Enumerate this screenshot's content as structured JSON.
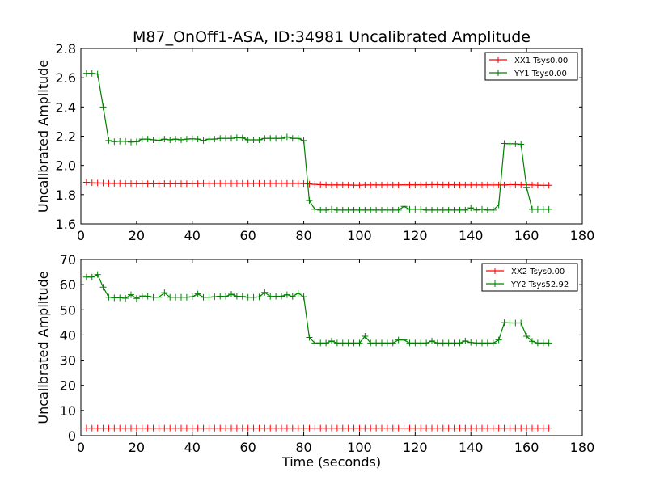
{
  "title": "M87_OnOff1-ASA, ID:34981 Uncalibrated Amplitude",
  "chart_data": [
    {
      "type": "line",
      "ylabel": "Uncalibrated Amplitude",
      "xlabel": "",
      "xlim": [
        0,
        180
      ],
      "ylim": [
        1.6,
        2.8
      ],
      "xticks": [
        0,
        20,
        40,
        60,
        80,
        100,
        120,
        140,
        160,
        180
      ],
      "yticks": [
        1.6,
        1.8,
        2.0,
        2.2,
        2.4,
        2.6,
        2.8
      ],
      "ytick_decimals": 1,
      "grid": false,
      "legend_position": "top-right",
      "series": [
        {
          "name": "XX1 Tsys0.00",
          "color": "#ff0000",
          "x": [
            2,
            4,
            6,
            8,
            10,
            12,
            14,
            16,
            18,
            20,
            22,
            24,
            26,
            28,
            30,
            32,
            34,
            36,
            38,
            40,
            42,
            44,
            46,
            48,
            50,
            52,
            54,
            56,
            58,
            60,
            62,
            64,
            66,
            68,
            70,
            72,
            74,
            76,
            78,
            80,
            82,
            84,
            86,
            88,
            90,
            92,
            94,
            96,
            98,
            100,
            102,
            104,
            106,
            108,
            110,
            112,
            114,
            116,
            118,
            120,
            122,
            124,
            126,
            128,
            130,
            132,
            134,
            136,
            138,
            140,
            142,
            144,
            146,
            148,
            150,
            152,
            154,
            156,
            158,
            160,
            162,
            164,
            166,
            168
          ],
          "y": [
            1.885,
            1.881,
            1.88,
            1.879,
            1.878,
            1.877,
            1.877,
            1.876,
            1.876,
            1.875,
            1.875,
            1.875,
            1.875,
            1.875,
            1.876,
            1.875,
            1.875,
            1.875,
            1.875,
            1.876,
            1.876,
            1.877,
            1.877,
            1.877,
            1.877,
            1.877,
            1.877,
            1.877,
            1.877,
            1.877,
            1.877,
            1.877,
            1.877,
            1.877,
            1.877,
            1.877,
            1.877,
            1.877,
            1.877,
            1.876,
            1.873,
            1.87,
            1.868,
            1.867,
            1.866,
            1.866,
            1.866,
            1.866,
            1.865,
            1.865,
            1.866,
            1.866,
            1.866,
            1.866,
            1.866,
            1.866,
            1.866,
            1.867,
            1.867,
            1.867,
            1.867,
            1.867,
            1.868,
            1.868,
            1.867,
            1.867,
            1.867,
            1.866,
            1.866,
            1.866,
            1.866,
            1.866,
            1.866,
            1.866,
            1.866,
            1.866,
            1.868,
            1.868,
            1.867,
            1.867,
            1.866,
            1.865,
            1.864,
            1.864
          ]
        },
        {
          "name": "YY1 Tsys0.00",
          "color": "#008000",
          "x": [
            2,
            4,
            6,
            8,
            10,
            12,
            14,
            16,
            18,
            20,
            22,
            24,
            26,
            28,
            30,
            32,
            34,
            36,
            38,
            40,
            42,
            44,
            46,
            48,
            50,
            52,
            54,
            56,
            58,
            60,
            62,
            64,
            66,
            68,
            70,
            72,
            74,
            76,
            78,
            80,
            82,
            84,
            86,
            88,
            90,
            92,
            94,
            96,
            98,
            100,
            102,
            104,
            106,
            108,
            110,
            112,
            114,
            116,
            118,
            120,
            122,
            124,
            126,
            128,
            130,
            132,
            134,
            136,
            138,
            140,
            142,
            144,
            146,
            148,
            150,
            152,
            154,
            156,
            158,
            160,
            162,
            164,
            166,
            168
          ],
          "y": [
            2.63,
            2.63,
            2.625,
            2.4,
            2.17,
            2.163,
            2.165,
            2.165,
            2.16,
            2.162,
            2.18,
            2.18,
            2.175,
            2.172,
            2.18,
            2.175,
            2.18,
            2.175,
            2.18,
            2.182,
            2.18,
            2.17,
            2.18,
            2.18,
            2.185,
            2.185,
            2.185,
            2.19,
            2.188,
            2.175,
            2.175,
            2.175,
            2.185,
            2.185,
            2.185,
            2.185,
            2.195,
            2.185,
            2.185,
            2.17,
            1.76,
            1.7,
            1.695,
            1.695,
            1.7,
            1.695,
            1.695,
            1.695,
            1.695,
            1.695,
            1.695,
            1.695,
            1.695,
            1.695,
            1.695,
            1.695,
            1.695,
            1.72,
            1.7,
            1.7,
            1.7,
            1.695,
            1.695,
            1.695,
            1.695,
            1.695,
            1.695,
            1.695,
            1.695,
            1.71,
            1.695,
            1.7,
            1.695,
            1.695,
            1.73,
            2.15,
            2.148,
            2.148,
            2.145,
            1.85,
            1.7,
            1.7,
            1.7,
            1.7
          ]
        }
      ]
    },
    {
      "type": "line",
      "ylabel": "Uncalibrated Amplitude",
      "xlabel": "Time (seconds)",
      "xlim": [
        0,
        180
      ],
      "ylim": [
        0,
        70
      ],
      "xticks": [
        0,
        20,
        40,
        60,
        80,
        100,
        120,
        140,
        160,
        180
      ],
      "yticks": [
        0,
        10,
        20,
        30,
        40,
        50,
        60,
        70
      ],
      "ytick_decimals": 0,
      "grid": false,
      "legend_position": "top-right",
      "series": [
        {
          "name": "XX2 Tsys0.00",
          "color": "#ff0000",
          "x": [
            2,
            4,
            6,
            8,
            10,
            12,
            14,
            16,
            18,
            20,
            22,
            24,
            26,
            28,
            30,
            32,
            34,
            36,
            38,
            40,
            42,
            44,
            46,
            48,
            50,
            52,
            54,
            56,
            58,
            60,
            62,
            64,
            66,
            68,
            70,
            72,
            74,
            76,
            78,
            80,
            82,
            84,
            86,
            88,
            90,
            92,
            94,
            96,
            98,
            100,
            102,
            104,
            106,
            108,
            110,
            112,
            114,
            116,
            118,
            120,
            122,
            124,
            126,
            128,
            130,
            132,
            134,
            136,
            138,
            140,
            142,
            144,
            146,
            148,
            150,
            152,
            154,
            156,
            158,
            160,
            162,
            164,
            166,
            168
          ],
          "y": [
            3,
            3,
            3,
            3,
            3,
            3,
            3,
            3,
            3,
            3,
            3,
            3,
            3,
            3,
            3,
            3,
            3,
            3,
            3,
            3,
            3,
            3,
            3,
            3,
            3,
            3,
            3,
            3,
            3,
            3,
            3,
            3,
            3,
            3,
            3,
            3,
            3,
            3,
            3,
            3,
            3,
            3,
            3,
            3,
            3,
            3,
            3,
            3,
            3,
            3,
            3,
            3,
            3,
            3,
            3,
            3,
            3,
            3,
            3,
            3,
            3,
            3,
            3,
            3,
            3,
            3,
            3,
            3,
            3,
            3,
            3,
            3,
            3,
            3,
            3,
            3,
            3,
            3,
            3,
            3,
            3,
            3,
            3,
            3
          ]
        },
        {
          "name": "YY2 Tsys52.92",
          "color": "#008000",
          "x": [
            2,
            4,
            6,
            8,
            10,
            12,
            14,
            16,
            18,
            20,
            22,
            24,
            26,
            28,
            30,
            32,
            34,
            36,
            38,
            40,
            42,
            44,
            46,
            48,
            50,
            52,
            54,
            56,
            58,
            60,
            62,
            64,
            66,
            68,
            70,
            72,
            74,
            76,
            78,
            80,
            82,
            84,
            86,
            88,
            90,
            92,
            94,
            96,
            98,
            100,
            102,
            104,
            106,
            108,
            110,
            112,
            114,
            116,
            118,
            120,
            122,
            124,
            126,
            128,
            130,
            132,
            134,
            136,
            138,
            140,
            142,
            144,
            146,
            148,
            150,
            152,
            154,
            156,
            158,
            160,
            162,
            164,
            166,
            168
          ],
          "y": [
            63,
            63,
            64,
            59,
            55,
            54.8,
            54.8,
            54.6,
            56,
            54.5,
            55.5,
            55.4,
            55,
            55,
            56.8,
            55,
            55,
            55,
            55,
            55.2,
            56.3,
            55,
            55,
            55.2,
            55.4,
            55.3,
            56.2,
            55.4,
            55.3,
            55,
            55,
            55.1,
            56.9,
            55.3,
            55.4,
            55.4,
            56,
            55.3,
            56.6,
            55.2,
            39,
            36.8,
            36.8,
            36.8,
            37.6,
            36.8,
            36.8,
            36.8,
            36.8,
            36.8,
            39.5,
            36.8,
            36.8,
            36.8,
            36.8,
            36.8,
            38,
            38,
            36.8,
            36.8,
            36.8,
            36.8,
            37.6,
            36.8,
            36.8,
            36.8,
            36.8,
            36.8,
            37.6,
            37,
            36.8,
            36.8,
            36.8,
            36.8,
            38,
            44.9,
            44.8,
            44.8,
            44.8,
            39.5,
            37.5,
            36.8,
            36.8,
            36.8
          ]
        }
      ]
    }
  ]
}
